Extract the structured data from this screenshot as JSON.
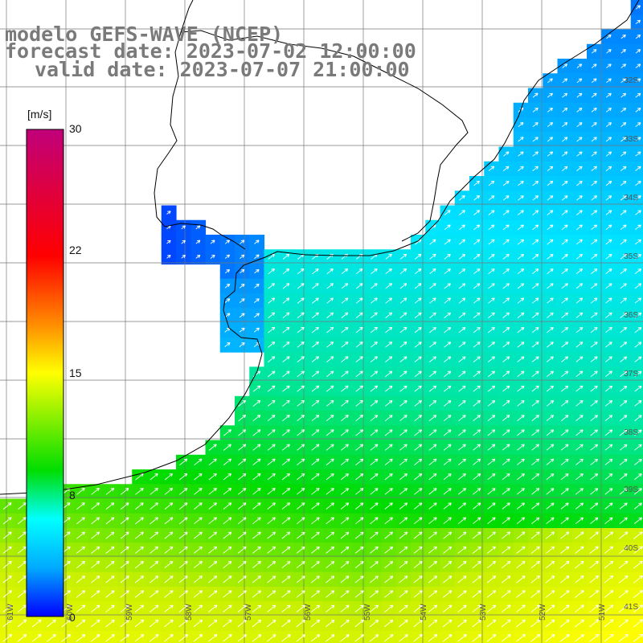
{
  "titles": {
    "model": "modelo GEFS-WAVE (NCEP)",
    "forecast": "forecast date: 2023-07-02 12:00:00",
    "valid": "valid date: 2023-07-07 21:00:00"
  },
  "colorbar": {
    "unit": "[m/s]",
    "ticks": [
      "30",
      "22",
      "15",
      "8",
      "0"
    ],
    "colors": [
      "#c0007a",
      "#ff0000",
      "#ff8c00",
      "#ffff00",
      "#00dd00",
      "#00ffff",
      "#00aaff",
      "#0000ff"
    ]
  },
  "latitude_labels": [
    "32S",
    "33S",
    "34S",
    "35S",
    "36S",
    "37S",
    "38S",
    "39S",
    "40S",
    "41S"
  ],
  "longitude_labels": [
    "61W",
    "60W",
    "59W",
    "58W",
    "57W",
    "56W",
    "55W",
    "54W",
    "53W",
    "52W",
    "51W"
  ],
  "field": {
    "variable": "wind speed",
    "unit": "m/s",
    "range": [
      0,
      30
    ],
    "wind_direction": "north-east"
  }
}
